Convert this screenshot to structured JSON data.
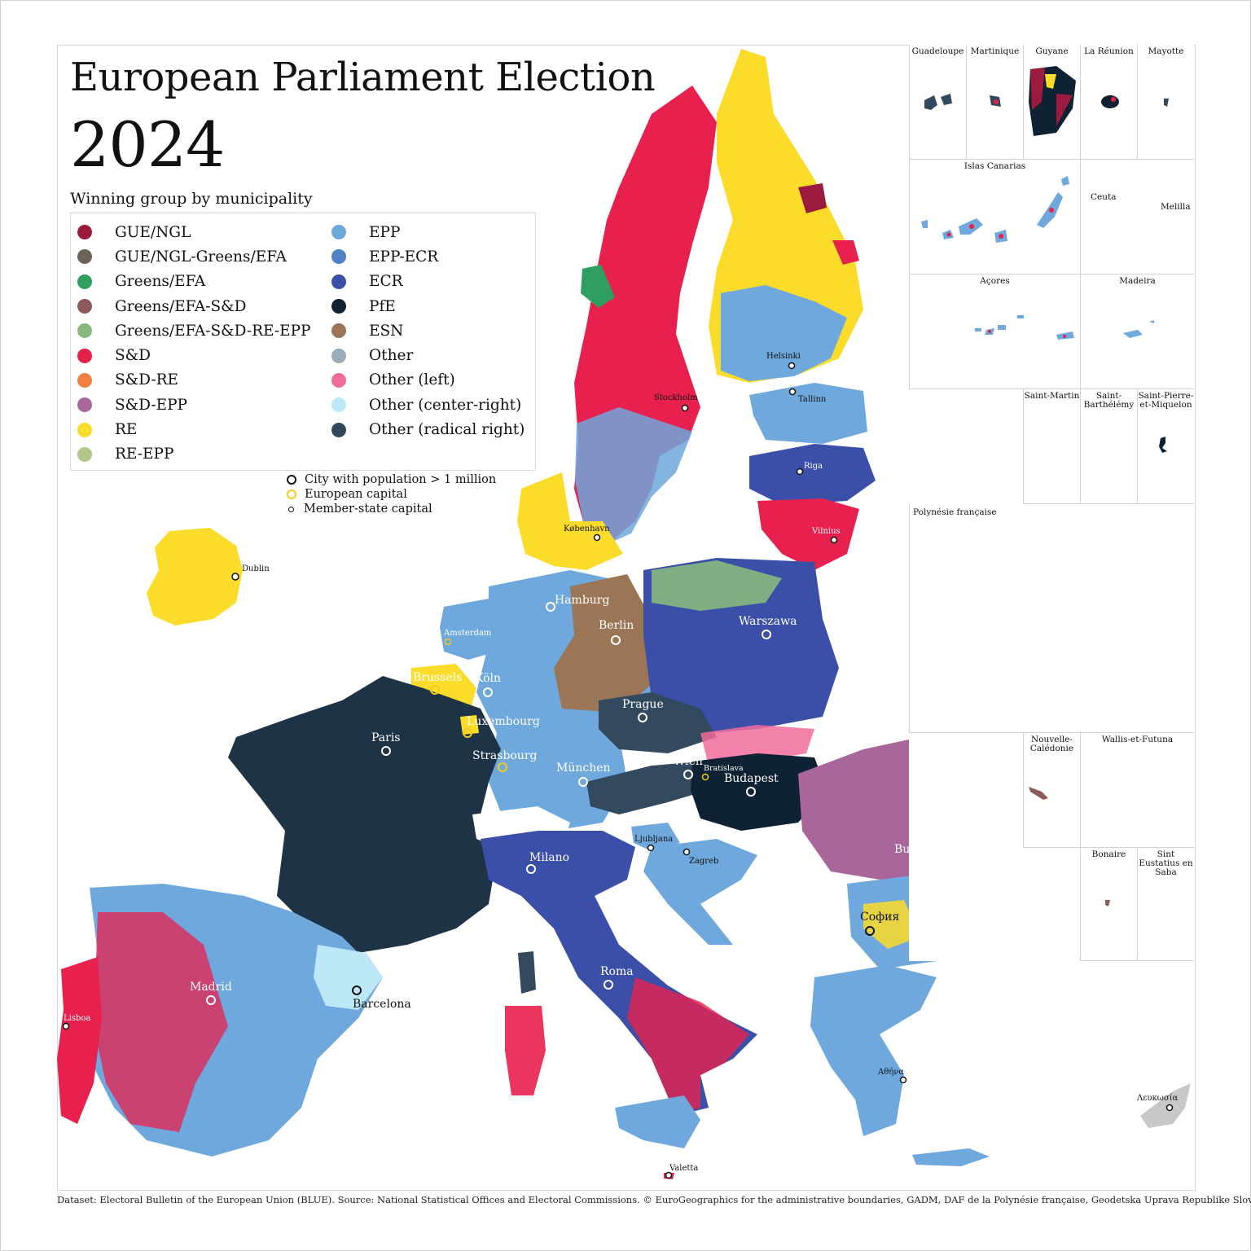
{
  "title": "European Parliament Election",
  "year": "2024",
  "legend_title": "Winning group by municipality",
  "legend_left": [
    {
      "label": "GUE/NGL",
      "color": "#9b1b3e"
    },
    {
      "label": "GUE/NGL-Greens/EFA",
      "color": "#6b6358"
    },
    {
      "label": "Greens/EFA",
      "color": "#2f9e5e"
    },
    {
      "label": "Greens/EFA-S&D",
      "color": "#8c5a5a"
    },
    {
      "label": "Greens/EFA-S&D-RE-EPP",
      "color": "#86b87c"
    },
    {
      "label": "S&D",
      "color": "#e8204e"
    },
    {
      "label": "S&D-RE",
      "color": "#f08040"
    },
    {
      "label": "S&D-EPP",
      "color": "#a8669b"
    },
    {
      "label": "RE",
      "color": "#fcdc2a"
    },
    {
      "label": "RE-EPP",
      "color": "#b0c68a"
    }
  ],
  "legend_right": [
    {
      "label": "EPP",
      "color": "#6fa8dc"
    },
    {
      "label": "EPP-ECR",
      "color": "#4f81c7"
    },
    {
      "label": "ECR",
      "color": "#3b4fa8"
    },
    {
      "label": "PfE",
      "color": "#0f2233"
    },
    {
      "label": "ESN",
      "color": "#9a7556"
    },
    {
      "label": "Other",
      "color": "#99abb8"
    },
    {
      "label": "Other (left)",
      "color": "#f06c9b"
    },
    {
      "label": "Other (center-right)",
      "color": "#bde8f7"
    },
    {
      "label": "Other (radical right)",
      "color": "#334a5e"
    }
  ],
  "markers": {
    "big": "City with population > 1 million",
    "capital": "European capital",
    "member": "Member-state capital"
  },
  "cities": {
    "dublin": "Dublin",
    "stockholm": "Stockholm",
    "helsinki": "Helsinki",
    "tallinn": "Tallinn",
    "riga": "Riga",
    "vilnius": "Vilnius",
    "kobenhavn": "København",
    "hamburg": "Hamburg",
    "berlin": "Berlin",
    "warszawa": "Warszawa",
    "amsterdam": "Amsterdam",
    "brussels": "Brussels",
    "koln": "Köln",
    "luxembourg": "Luxembourg",
    "prague": "Prague",
    "paris": "Paris",
    "strasbourg": "Strasbourg",
    "munchen": "München",
    "wien": "Wien",
    "bratislava": "Bratislava",
    "budapest": "Budapest",
    "ljubljana": "Ljubljana",
    "zagreb": "Zagreb",
    "milano": "Milano",
    "bucuresti": "București",
    "sofia": "София",
    "roma": "Roma",
    "madrid": "Madrid",
    "barcelona": "Barcelona",
    "lisboa": "Lisboa",
    "athina": "Αθήνα",
    "lefkosia": "Λευκωσία",
    "valetta": "Valetta"
  },
  "insets": {
    "guadeloupe": "Guadeloupe",
    "martinique": "Martinique",
    "guyane": "Guyane",
    "reunion": "La Réunion",
    "mayotte": "Mayotte",
    "canarias": "Islas Canarias",
    "ceuta": "Ceuta",
    "melilla": "Melilla",
    "acores": "Açores",
    "madeira": "Madeira",
    "saint_martin": "Saint-Martin",
    "saint_barthelemy": "Saint-Barthélémy",
    "saint_pierre": "Saint-Pierre-et-Miquelon",
    "polynesie": "Polynésie française",
    "caledonie": "Nouvelle-Calédonie",
    "wallis": "Wallis-et-Futuna",
    "bonaire": "Bonaire",
    "sint_eustatius": "Sint Eustatius en Saba"
  },
  "footer": "Dataset: Electoral Bulletin of the European Union (BLUE). Source: National Statistical Offices and Electoral Commissions.  © EuroGeographics for the administrative boundaries, GADM, DAF de la Polynésie française, Geodetska Uprava Republike Slovenije."
}
